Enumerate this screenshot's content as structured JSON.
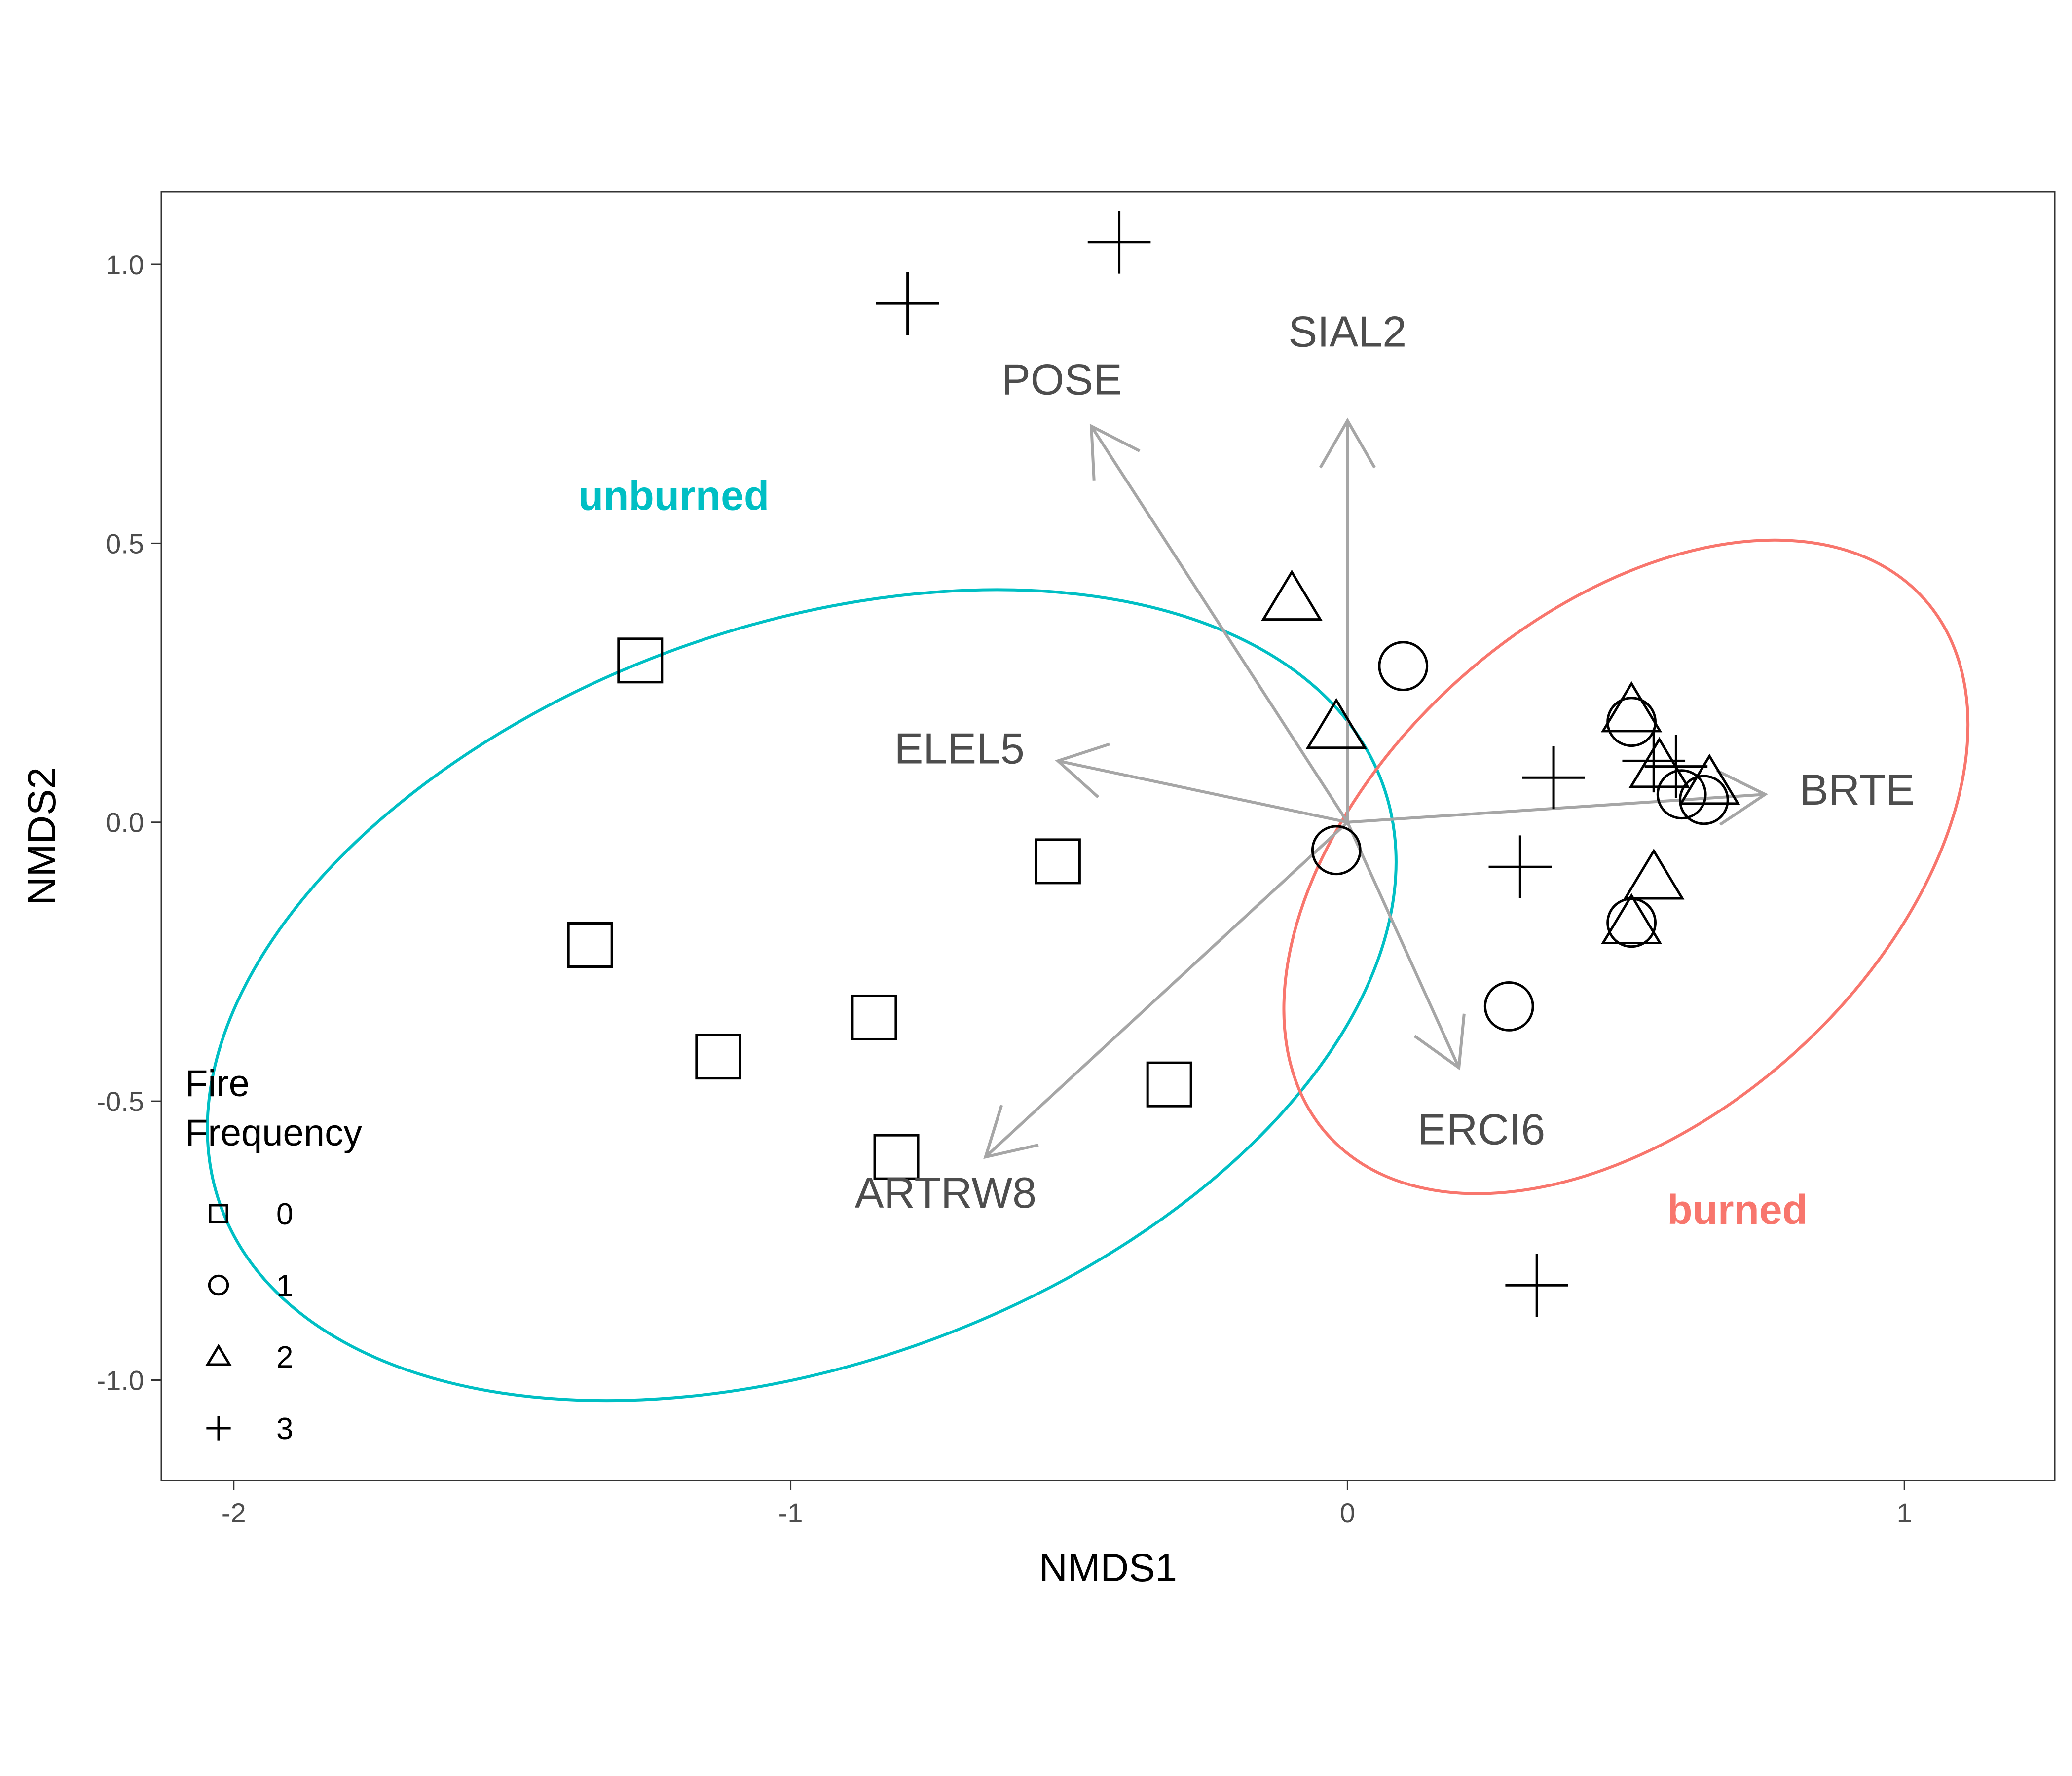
{
  "chart_data": {
    "type": "scatter",
    "xlabel": "NMDS1",
    "ylabel": "NMDS2",
    "xlim": [
      -2.13,
      1.27
    ],
    "ylim": [
      -1.18,
      1.13
    ],
    "x_ticks": [
      -2,
      -1,
      0,
      1
    ],
    "x_tick_labels": [
      "-2",
      "-1",
      "0",
      "1"
    ],
    "y_ticks": [
      1.0,
      0.5,
      0.0,
      -0.5,
      -1.0
    ],
    "y_tick_labels": [
      "1.0",
      "0.5",
      "0.0",
      "-0.5",
      "-1.0"
    ],
    "grid": false,
    "legend": {
      "title_lines": [
        "Fire",
        "Frequency"
      ],
      "position": "bottom-left-inside",
      "entries": [
        {
          "label": "0",
          "shape": "square"
        },
        {
          "label": "1",
          "shape": "circle"
        },
        {
          "label": "2",
          "shape": "triangle"
        },
        {
          "label": "3",
          "shape": "plus"
        }
      ]
    },
    "series": [
      {
        "name": "0",
        "shape": "square",
        "points": [
          [
            -1.27,
            0.29
          ],
          [
            -0.52,
            -0.07
          ],
          [
            -1.36,
            -0.22
          ],
          [
            -0.85,
            -0.35
          ],
          [
            -1.13,
            -0.42
          ],
          [
            -0.32,
            -0.47
          ],
          [
            -0.81,
            -0.6
          ]
        ]
      },
      {
        "name": "1",
        "shape": "circle",
        "points": [
          [
            0.1,
            0.28
          ],
          [
            0.51,
            0.18
          ],
          [
            -0.02,
            -0.05
          ],
          [
            0.6,
            0.05
          ],
          [
            0.64,
            0.04
          ],
          [
            0.51,
            -0.18
          ],
          [
            0.29,
            -0.33
          ]
        ]
      },
      {
        "name": "2",
        "shape": "triangle",
        "points": [
          [
            -0.1,
            0.4
          ],
          [
            -0.02,
            0.17
          ],
          [
            0.51,
            0.2
          ],
          [
            0.56,
            0.1
          ],
          [
            0.65,
            0.07
          ],
          [
            0.55,
            -0.1
          ],
          [
            0.51,
            -0.18
          ]
        ]
      },
      {
        "name": "3",
        "shape": "plus",
        "points": [
          [
            -0.79,
            0.93
          ],
          [
            -0.41,
            1.04
          ],
          [
            0.37,
            0.08
          ],
          [
            0.55,
            0.11
          ],
          [
            0.59,
            0.1
          ],
          [
            0.31,
            -0.08
          ],
          [
            0.34,
            -0.83
          ]
        ]
      }
    ],
    "vectors": [
      {
        "label": "POSE",
        "x": -0.46,
        "y": 0.71
      },
      {
        "label": "SIAL2",
        "x": 0.0,
        "y": 0.72
      },
      {
        "label": "ELEL5",
        "x": -0.52,
        "y": 0.11
      },
      {
        "label": "BRTE",
        "x": 0.75,
        "y": 0.05
      },
      {
        "label": "ERCI6",
        "x": 0.2,
        "y": -0.44
      },
      {
        "label": "ARTRW8",
        "x": -0.65,
        "y": -0.6
      }
    ],
    "ellipses": [
      {
        "label": "unburned",
        "color": "#00BFC4",
        "center": [
          -0.98,
          -0.31
        ],
        "semi_axes": [
          1.11,
          0.66
        ],
        "angle_deg": -20
      },
      {
        "label": "burned",
        "color": "#F8766D",
        "center": [
          0.5,
          -0.08
        ],
        "semi_axes": [
          0.72,
          0.45
        ],
        "angle_deg": -42
      }
    ],
    "colors": {
      "axis": "#333333",
      "tick": "#333333",
      "vector": "#A6A6A6",
      "point": "#000000",
      "unburned": "#00BFC4",
      "burned": "#F8766D"
    }
  }
}
